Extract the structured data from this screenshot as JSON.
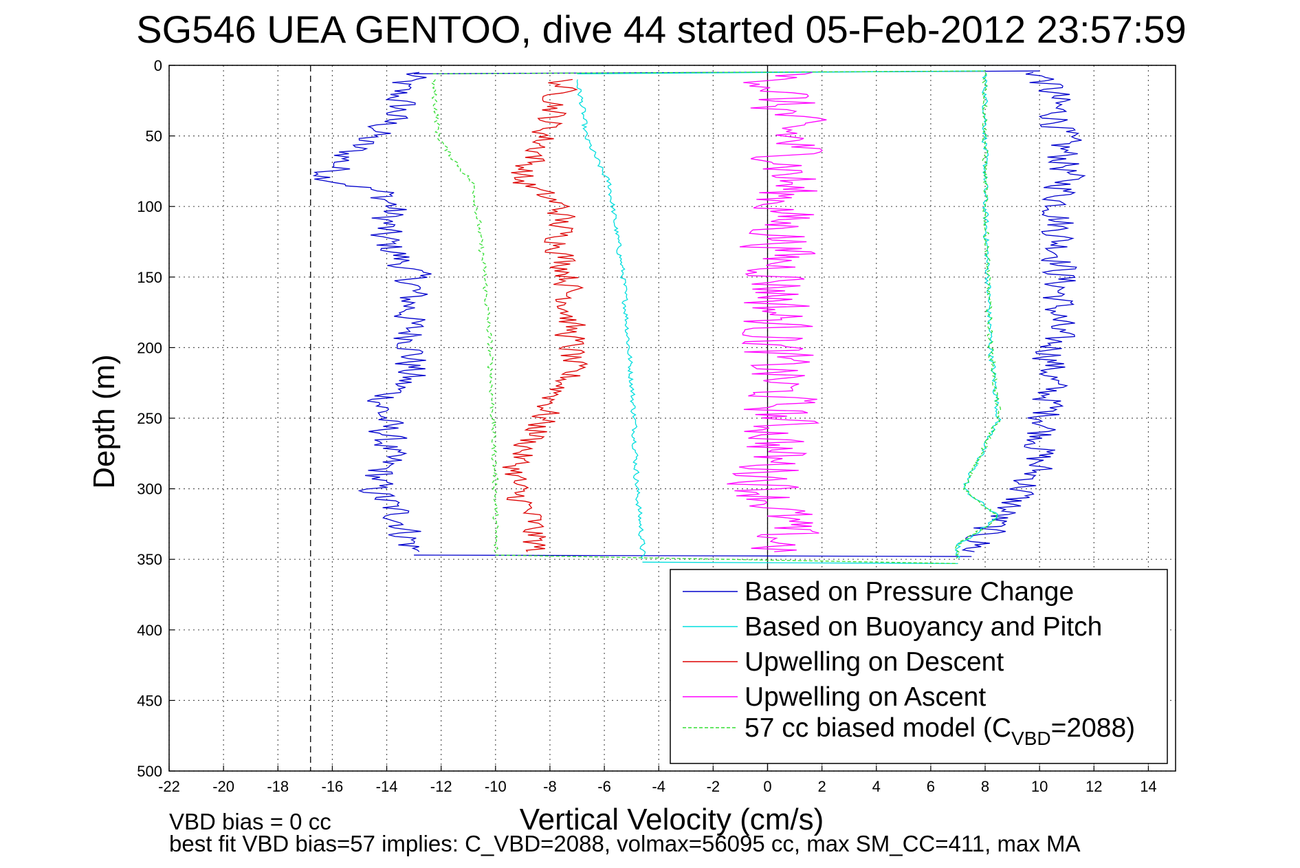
{
  "chart_data": {
    "type": "line",
    "title": "SG546 UEA GENTOO, dive 44 started 05-Feb-2012 23:57:59",
    "xlabel": "Vertical Velocity (cm/s)",
    "ylabel": "Depth (m)",
    "xlim": [
      -22,
      15
    ],
    "ylim": [
      0,
      500
    ],
    "y_reversed": true,
    "grid": true,
    "legend_position": "lower-right",
    "x_ticks": [
      "-22",
      "-20",
      "-18",
      "-16",
      "-14",
      "-12",
      "-10",
      "-8",
      "-6",
      "-4",
      "-2",
      "0",
      "2",
      "4",
      "6",
      "8",
      "10",
      "12",
      "14"
    ],
    "y_ticks": [
      "0",
      "50",
      "100",
      "150",
      "200",
      "250",
      "300",
      "350",
      "400",
      "450",
      "500"
    ],
    "reference_lines": [
      {
        "orientation": "vertical",
        "x": 0,
        "style": "solid",
        "color": "#000000"
      },
      {
        "orientation": "vertical",
        "x": -16.8,
        "style": "dashed",
        "color": "#000000"
      }
    ],
    "series": [
      {
        "name": "Based on Pressure Change",
        "color": "#0000cc",
        "style": "solid",
        "noise": 0.8,
        "descent": [
          [
            5,
            -13
          ],
          [
            15,
            -13.6
          ],
          [
            30,
            -13.5
          ],
          [
            45,
            -14.2
          ],
          [
            55,
            -15
          ],
          [
            65,
            -15.5
          ],
          [
            80,
            -16.2
          ],
          [
            90,
            -14.2
          ],
          [
            100,
            -13.8
          ],
          [
            120,
            -14.2
          ],
          [
            150,
            -13
          ],
          [
            180,
            -13.2
          ],
          [
            200,
            -13
          ],
          [
            220,
            -13.2
          ],
          [
            240,
            -14.2
          ],
          [
            260,
            -14
          ],
          [
            280,
            -14
          ],
          [
            300,
            -14.5
          ],
          [
            320,
            -13.5
          ],
          [
            345,
            -13
          ]
        ],
        "ascent": [
          [
            5,
            10
          ],
          [
            20,
            10.5
          ],
          [
            50,
            10.8
          ],
          [
            80,
            11
          ],
          [
            100,
            10.7
          ],
          [
            150,
            10.8
          ],
          [
            200,
            10.5
          ],
          [
            250,
            10.3
          ],
          [
            290,
            9.8
          ],
          [
            310,
            9
          ],
          [
            330,
            8
          ],
          [
            345,
            7.5
          ]
        ]
      },
      {
        "name": "Based on Buoyancy and Pitch",
        "color": "#00dddd",
        "style": "solid",
        "noise": 0.12,
        "descent": [
          [
            10,
            -7
          ],
          [
            30,
            -6.8
          ],
          [
            50,
            -6.7
          ],
          [
            70,
            -6.2
          ],
          [
            85,
            -5.8
          ],
          [
            100,
            -5.7
          ],
          [
            150,
            -5.3
          ],
          [
            200,
            -5.1
          ],
          [
            250,
            -4.9
          ],
          [
            300,
            -4.8
          ],
          [
            340,
            -4.6
          ],
          [
            350,
            -4.6
          ]
        ],
        "ascent": [
          [
            5,
            8
          ],
          [
            50,
            8
          ],
          [
            100,
            8
          ],
          [
            200,
            8.2
          ],
          [
            250,
            8.5
          ],
          [
            300,
            7.2
          ],
          [
            320,
            8.5
          ],
          [
            340,
            7
          ],
          [
            350,
            7
          ]
        ]
      },
      {
        "name": "Upwelling on Descent",
        "color": "#dd0000",
        "style": "solid",
        "noise": 0.65,
        "descent": [
          [
            10,
            -7.5
          ],
          [
            30,
            -7.8
          ],
          [
            50,
            -8.2
          ],
          [
            65,
            -8.5
          ],
          [
            80,
            -9.2
          ],
          [
            100,
            -7.6
          ],
          [
            130,
            -7.6
          ],
          [
            150,
            -7.3
          ],
          [
            180,
            -7.3
          ],
          [
            200,
            -7.2
          ],
          [
            220,
            -7.3
          ],
          [
            240,
            -8
          ],
          [
            260,
            -8.5
          ],
          [
            280,
            -9.2
          ],
          [
            300,
            -9.3
          ],
          [
            320,
            -8.7
          ],
          [
            345,
            -8.5
          ]
        ]
      },
      {
        "name": "Upwelling on Ascent",
        "color": "#ff00ff",
        "style": "solid",
        "noise": 1.6,
        "ascent": [
          [
            5,
            0.5
          ],
          [
            30,
            0.5
          ],
          [
            60,
            1
          ],
          [
            80,
            0.8
          ],
          [
            100,
            0.5
          ],
          [
            150,
            0.5
          ],
          [
            200,
            0.2
          ],
          [
            250,
            0.5
          ],
          [
            300,
            0
          ],
          [
            320,
            0.5
          ],
          [
            345,
            0.5
          ]
        ]
      },
      {
        "name": "57 cc biased model (C",
        "name_sub": "VBD",
        "name_suffix": "=2088)",
        "color": "#33dd33",
        "style": "dashed",
        "noise": 0.12,
        "descent": [
          [
            10,
            -12.3
          ],
          [
            30,
            -12.2
          ],
          [
            50,
            -12.1
          ],
          [
            60,
            -11.8
          ],
          [
            75,
            -11.2
          ],
          [
            85,
            -10.8
          ],
          [
            100,
            -10.7
          ],
          [
            150,
            -10.4
          ],
          [
            200,
            -10.2
          ],
          [
            250,
            -10.1
          ],
          [
            300,
            -10
          ],
          [
            345,
            -10
          ]
        ],
        "ascent": [
          [
            5,
            8
          ],
          [
            50,
            8
          ],
          [
            100,
            8
          ],
          [
            200,
            8.2
          ],
          [
            250,
            8.5
          ],
          [
            300,
            7.2
          ],
          [
            320,
            8.5
          ],
          [
            340,
            7
          ],
          [
            350,
            7
          ]
        ]
      }
    ]
  },
  "footer": {
    "line1": "VBD bias = 0 cc",
    "line2": "best fit VBD bias=57 implies: C_VBD=2088, volmax=56095 cc, max SM_CC=411, max MA"
  }
}
